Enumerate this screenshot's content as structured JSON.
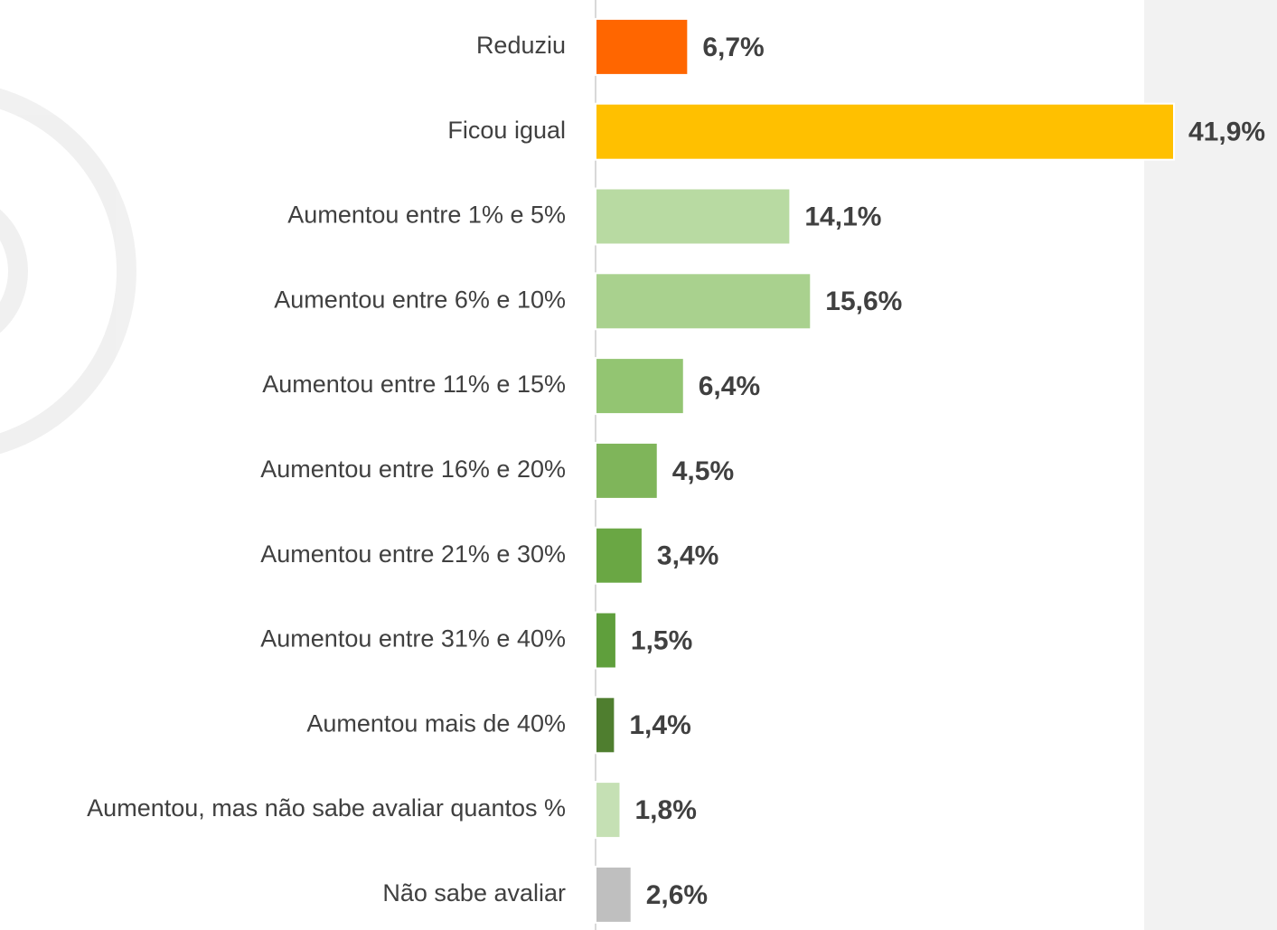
{
  "chart_data": {
    "type": "bar",
    "orientation": "horizontal",
    "categories": [
      "Reduziu",
      "Ficou igual",
      "Aumentou entre 1% e 5%",
      "Aumentou entre 6% e 10%",
      "Aumentou entre 11% e 15%",
      "Aumentou entre 16% e 20%",
      "Aumentou entre 21% e 30%",
      "Aumentou entre 31% e 40%",
      "Aumentou mais de 40%",
      "Aumentou, mas não sabe avaliar quantos %",
      "Não sabe avaliar"
    ],
    "values": [
      6.7,
      41.9,
      14.1,
      15.6,
      6.4,
      4.5,
      3.4,
      1.5,
      1.4,
      1.8,
      2.6
    ],
    "value_labels": [
      "6,7%",
      "41,9%",
      "14,1%",
      "15,6%",
      "6,4%",
      "4,5%",
      "3,4%",
      "1,5%",
      "1,4%",
      "1,8%",
      "2,6%"
    ],
    "colors": [
      "#ff6600",
      "#ffc000",
      "#b8daa2",
      "#a9d18e",
      "#93c572",
      "#7fb55a",
      "#6aa744",
      "#5f9f3c",
      "#4f7e2f",
      "#c5e0b4",
      "#bfbfbf"
    ]
  }
}
